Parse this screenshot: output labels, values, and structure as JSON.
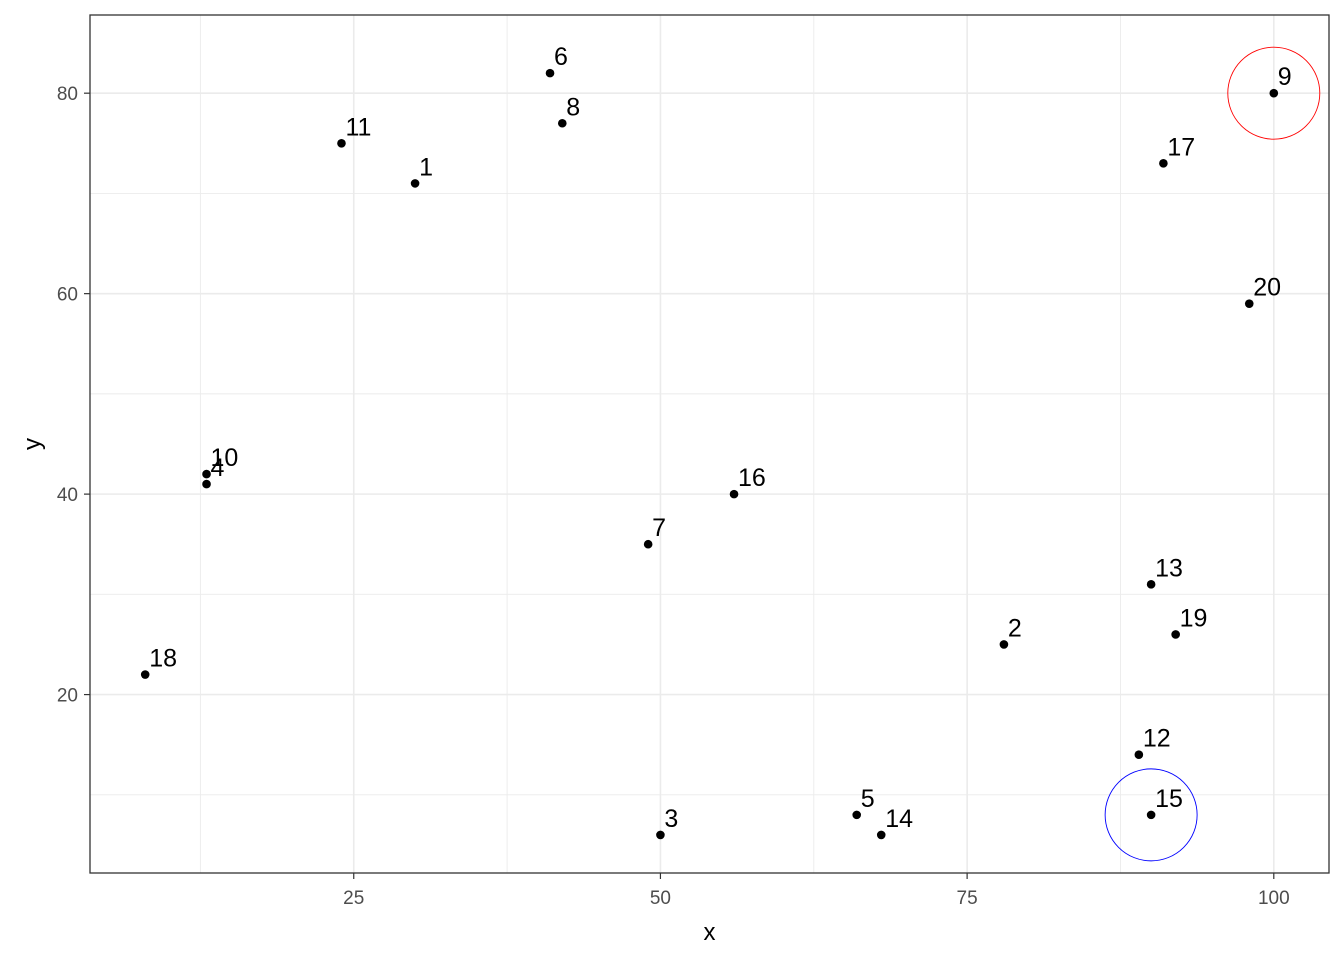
{
  "chart_data": {
    "type": "scatter",
    "title": "",
    "xlabel": "x",
    "ylabel": "y",
    "xlim": [
      3.5,
      104.5
    ],
    "ylim": [
      2.2,
      87.8
    ],
    "x_ticks": [
      25,
      50,
      75,
      100
    ],
    "y_ticks": [
      20,
      40,
      60,
      80
    ],
    "grid": true,
    "theme": "bw",
    "points": [
      {
        "label": "1",
        "x": 30,
        "y": 71
      },
      {
        "label": "2",
        "x": 78,
        "y": 25
      },
      {
        "label": "3",
        "x": 50,
        "y": 6
      },
      {
        "label": "4",
        "x": 13,
        "y": 41
      },
      {
        "label": "5",
        "x": 66,
        "y": 8
      },
      {
        "label": "6",
        "x": 41,
        "y": 82
      },
      {
        "label": "7",
        "x": 49,
        "y": 35
      },
      {
        "label": "8",
        "x": 42,
        "y": 77
      },
      {
        "label": "9",
        "x": 100,
        "y": 80
      },
      {
        "label": "10",
        "x": 13,
        "y": 42
      },
      {
        "label": "11",
        "x": 24,
        "y": 75
      },
      {
        "label": "12",
        "x": 89,
        "y": 14
      },
      {
        "label": "13",
        "x": 90,
        "y": 31
      },
      {
        "label": "14",
        "x": 68,
        "y": 6
      },
      {
        "label": "15",
        "x": 90,
        "y": 8
      },
      {
        "label": "16",
        "x": 56,
        "y": 40
      },
      {
        "label": "17",
        "x": 91,
        "y": 73
      },
      {
        "label": "18",
        "x": 8,
        "y": 22
      },
      {
        "label": "19",
        "x": 92,
        "y": 26
      },
      {
        "label": "20",
        "x": 98,
        "y": 59
      }
    ],
    "highlights": [
      {
        "point": "9",
        "x": 100,
        "y": 80,
        "color": "#ff0000"
      },
      {
        "point": "15",
        "x": 90,
        "y": 8,
        "color": "#0000ff"
      }
    ],
    "colors": {
      "points": "#000000",
      "grid": "#ebebeb",
      "panel_border": "#333333",
      "tick_text": "#4d4d4d"
    }
  }
}
